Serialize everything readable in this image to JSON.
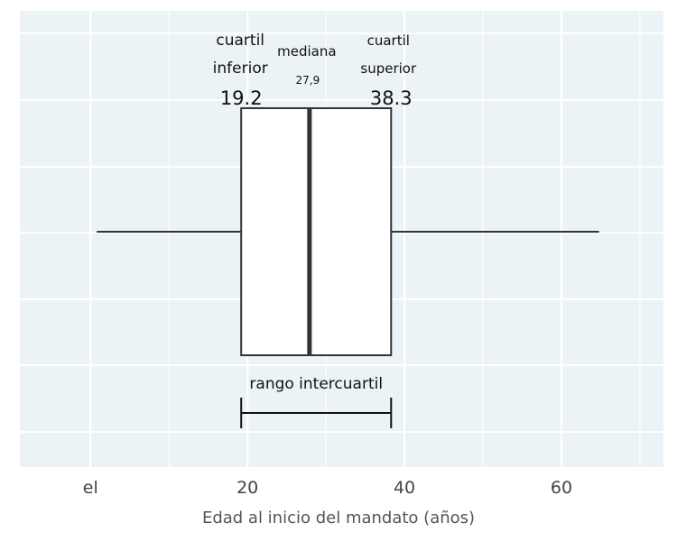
{
  "chart_data": {
    "type": "boxplot",
    "xlabel": "Edad al inicio del mandato (años)",
    "xlim": [
      -9,
      73
    ],
    "x_ticks": [
      {
        "value": 0,
        "label": "el"
      },
      {
        "value": 20,
        "label": "20"
      },
      {
        "value": 40,
        "label": "40"
      },
      {
        "value": 60,
        "label": "60"
      }
    ],
    "box": {
      "min": 0.8,
      "q1": 19.2,
      "median": 27.9,
      "q3": 38.3,
      "max": 64.8
    },
    "grid": true,
    "background_color": "#ebf3f6",
    "grid_color": "#ffffff",
    "annotations": {
      "q1_label_line1": "cuartil",
      "q1_label_line2": "inferior",
      "q1_value": "19.2",
      "median_label": "mediana",
      "median_value": "27,9",
      "q3_label_line1": "cuartil",
      "q3_label_line2": "superior",
      "q3_value": "38.3",
      "iqr_label": "rango intercuartil"
    }
  }
}
